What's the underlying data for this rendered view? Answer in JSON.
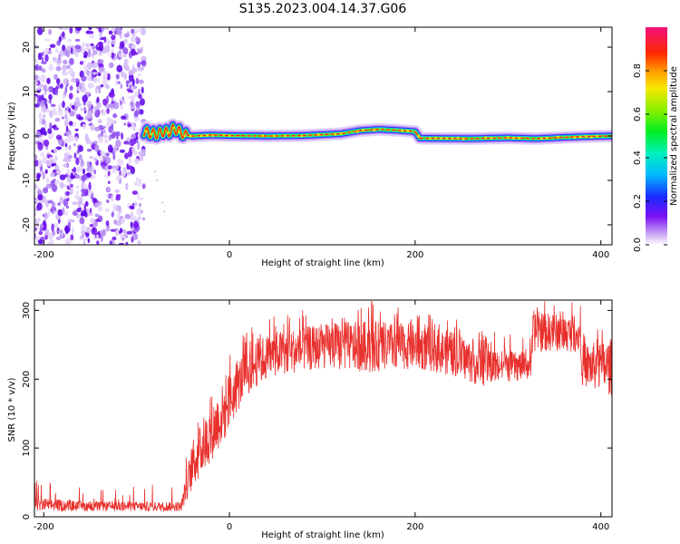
{
  "figure": {
    "title": "S135.2023.004.14.37.G06"
  },
  "chart_data": [
    {
      "type": "heatmap",
      "title": "",
      "xlabel": "Height of straight line (km)",
      "ylabel": "Frequency (Hz)",
      "xlim": [
        -210,
        412
      ],
      "ylim": [
        -24.5,
        24.5
      ],
      "xticks": [
        -200,
        0,
        200,
        400
      ],
      "yticks": [
        -20,
        -10,
        0,
        10,
        20
      ],
      "grid": false,
      "noise_region": {
        "x_range": [
          -210,
          -92
        ],
        "freq_range": [
          -24.5,
          24.5
        ]
      },
      "signal_ridge": {
        "x": [
          -92,
          -85,
          -78,
          -72,
          -66,
          -60,
          -55,
          -48,
          -40,
          -20,
          0,
          40,
          80,
          120,
          140,
          160,
          180,
          200,
          205,
          260,
          300,
          330,
          360,
          390,
          412
        ],
        "freq": [
          1.0,
          0.6,
          0.4,
          0.9,
          0.8,
          1.6,
          1.2,
          0.2,
          0.0,
          0.2,
          0.1,
          0.0,
          0.1,
          0.5,
          1.2,
          1.5,
          1.3,
          1.0,
          -0.5,
          -0.6,
          -0.4,
          -0.6,
          -0.3,
          -0.1,
          0.0
        ]
      },
      "colorbar": {
        "label": "Normalized spectral amplitude",
        "ticks": [
          "0.0",
          "0.2",
          "0.4",
          "0.6",
          "0.8"
        ],
        "range": [
          0,
          1
        ],
        "colormap": "rainbow (white-purple-blue-cyan-green-yellow-orange-red-magenta)"
      }
    },
    {
      "type": "line",
      "title": "",
      "xlabel": "Height of straight line (km)",
      "ylabel": "SNR (10 * v/v)",
      "xlim": [
        -210,
        412
      ],
      "ylim": [
        0,
        315
      ],
      "xticks": [
        -200,
        0,
        200,
        400
      ],
      "yticks": [
        0,
        100,
        200,
        300
      ],
      "grid": false,
      "series": [
        {
          "name": "SNR",
          "color": "#e8302c",
          "envelope_x": [
            -210,
            -150,
            -100,
            -52,
            -40,
            -25,
            -5,
            15,
            30,
            50,
            100,
            150,
            200,
            240,
            270,
            300,
            325,
            327,
            378,
            380,
            412
          ],
          "envelope_low": [
            8,
            8,
            8,
            8,
            40,
            70,
            110,
            170,
            190,
            205,
            215,
            210,
            215,
            205,
            190,
            195,
            200,
            240,
            240,
            190,
            175
          ],
          "envelope_high": [
            28,
            22,
            22,
            22,
            110,
            150,
            200,
            240,
            260,
            270,
            280,
            285,
            280,
            270,
            250,
            240,
            240,
            300,
            290,
            250,
            260
          ],
          "peak": {
            "x": 153,
            "y": 313
          }
        }
      ]
    }
  ],
  "colors": {
    "line": "#e8302c",
    "axis": "#000000",
    "background": "#ffffff"
  }
}
